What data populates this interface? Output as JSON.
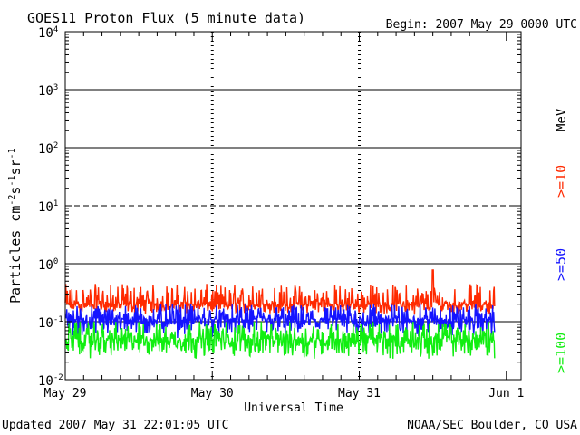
{
  "chart_data": {
    "type": "line",
    "title": "GOES11 Proton Flux (5 minute data)",
    "begin_label": "Begin: 2007 May 29 0000 UTC",
    "xlabel": "Universal Time",
    "ylabel": "Particles cm-2s-1sr-1",
    "ylabel_parts": {
      "main": "Particles cm",
      "sup1": "-2",
      "mid1": "s",
      "sup2": "-1",
      "mid2": "sr",
      "sup3": "-1"
    },
    "yscale": "log",
    "ylim": [
      0.01,
      10000
    ],
    "xlim_days": [
      0,
      3.1
    ],
    "x_ticks": [
      {
        "day": 0,
        "label": "May 29"
      },
      {
        "day": 1,
        "label": "May 30"
      },
      {
        "day": 2,
        "label": "May 31"
      },
      {
        "day": 3,
        "label": "Jun 1"
      }
    ],
    "y_ticks": [
      {
        "value": 0.01,
        "base": "10",
        "exp": "-2"
      },
      {
        "value": 0.1,
        "base": "10",
        "exp": "-1"
      },
      {
        "value": 1,
        "base": "10",
        "exp": "0"
      },
      {
        "value": 10,
        "base": "10",
        "exp": "1"
      },
      {
        "value": 100,
        "base": "10",
        "exp": "2"
      },
      {
        "value": 1000,
        "base": "10",
        "exp": "3"
      },
      {
        "value": 10000,
        "base": "10",
        "exp": "4"
      }
    ],
    "threshold_lines": [
      {
        "value": 1000,
        "style": "solid"
      },
      {
        "value": 100,
        "style": "solid"
      },
      {
        "value": 10,
        "style": "dashed"
      },
      {
        "value": 1,
        "style": "solid"
      },
      {
        "value": 0.1,
        "style": "solid"
      }
    ],
    "data_end_day": 2.92,
    "series": [
      {
        "name": ">=10",
        "unit": "MeV",
        "color": "#ff2a00",
        "median": 0.2,
        "low": 0.13,
        "high": 0.45,
        "peak": {
          "day": 2.5,
          "value": 0.78
        }
      },
      {
        "name": ">=50",
        "unit": "",
        "color": "#1414ff",
        "median": 0.11,
        "low": 0.05,
        "high": 0.2
      },
      {
        "name": ">=100",
        "unit": "",
        "color": "#11ee11",
        "median": 0.05,
        "low": 0.022,
        "high": 0.1
      }
    ],
    "legend_unit": "MeV"
  },
  "footer": {
    "updated": "Updated 2007 May 31 22:01:05 UTC",
    "credit": "NOAA/SEC Boulder, CO USA"
  }
}
